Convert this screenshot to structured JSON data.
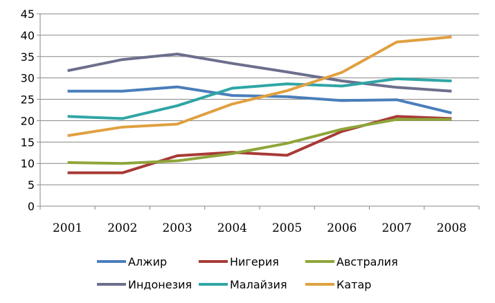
{
  "chart_data": {
    "type": "line",
    "title": "",
    "xlabel": "",
    "ylabel": "",
    "categories": [
      "2001",
      "2002",
      "2003",
      "2004",
      "2005",
      "2006",
      "2007",
      "2008"
    ],
    "ylim": [
      0,
      45
    ],
    "yticks": [
      0,
      5,
      10,
      15,
      20,
      25,
      30,
      35,
      40,
      45
    ],
    "grid": true,
    "legend_position": "bottom",
    "series": [
      {
        "name": "Алжир",
        "color": "#4A7EBB",
        "values": [
          26.9,
          26.9,
          27.9,
          25.9,
          25.6,
          24.7,
          24.9,
          21.8
        ]
      },
      {
        "name": "Нигерия",
        "color": "#A83A36",
        "values": [
          7.8,
          7.8,
          11.8,
          12.6,
          11.9,
          17.5,
          21.0,
          20.5
        ]
      },
      {
        "name": "Австралия",
        "color": "#8EA53A",
        "values": [
          10.2,
          10.0,
          10.6,
          12.3,
          14.7,
          18.0,
          20.3,
          20.3
        ]
      },
      {
        "name": "Индонезия",
        "color": "#6B6F8C",
        "values": [
          31.7,
          34.3,
          35.6,
          33.4,
          31.4,
          29.3,
          27.8,
          26.9
        ]
      },
      {
        "name": "Малайзия",
        "color": "#2FA5A5",
        "values": [
          21.0,
          20.5,
          23.5,
          27.6,
          28.6,
          28.1,
          29.8,
          29.3
        ]
      },
      {
        "name": "Катар",
        "color": "#E0A040",
        "values": [
          16.5,
          18.5,
          19.2,
          23.9,
          27.0,
          31.3,
          38.4,
          39.6
        ]
      }
    ]
  }
}
